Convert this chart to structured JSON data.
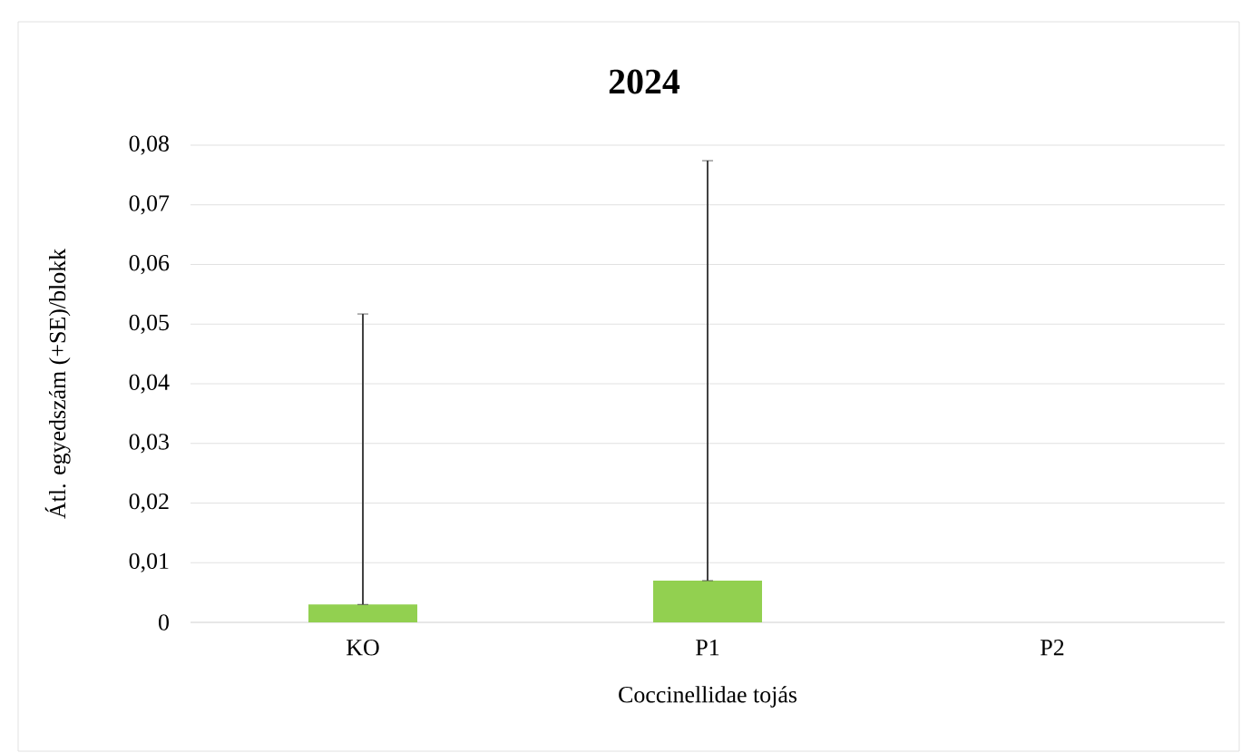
{
  "chart_data": {
    "type": "bar",
    "title": "2024",
    "xlabel": "Coccinellidae tojás",
    "ylabel": "Átl. egyedszám (+SE)/blokk",
    "categories": [
      "KO",
      "P1",
      "P2"
    ],
    "values": [
      0.003,
      0.007,
      0
    ],
    "errors": [
      [
        0.003,
        0.0517
      ],
      [
        0.007,
        0.0774
      ],
      null
    ],
    "color": "#92d050",
    "ylim": [
      0,
      0.08
    ],
    "yticks": [
      0,
      {
        "value": 0.01,
        "label": "0,01"
      },
      {
        "value": 0.02,
        "label": "0,02"
      },
      {
        "value": 0.03,
        "label": "0,03"
      },
      {
        "value": 0.04,
        "label": "0,04"
      },
      {
        "value": 0.05,
        "label": "0,05"
      },
      {
        "value": 0.06,
        "label": "0,06"
      },
      {
        "value": 0.07,
        "label": "0,07"
      },
      {
        "value": 0.08,
        "label": "0,08"
      }
    ],
    "grid": "y"
  }
}
